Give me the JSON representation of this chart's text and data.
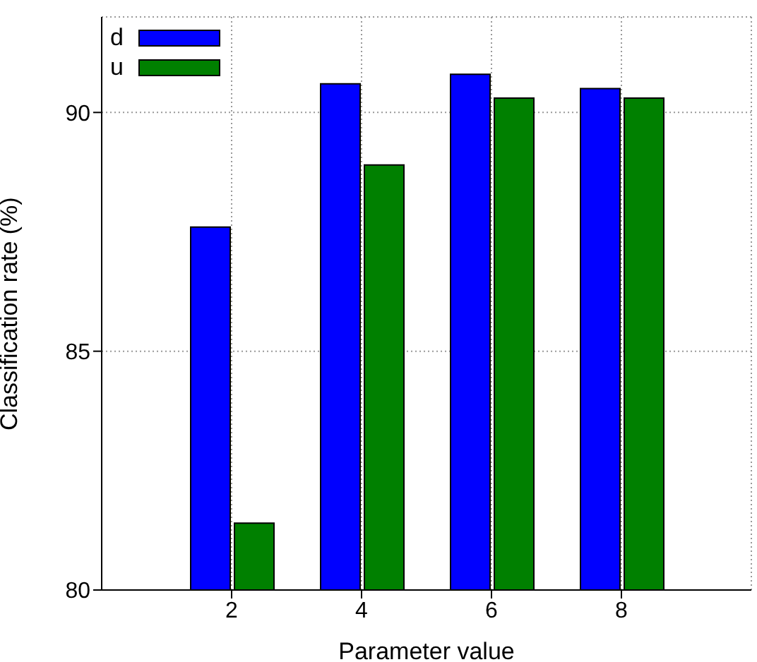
{
  "chart_data": {
    "type": "bar",
    "xlabel": "Parameter value",
    "ylabel": "Classification rate (%)",
    "x": [
      2,
      4,
      6,
      8
    ],
    "series": [
      {
        "name": "d",
        "color": "#0000ff",
        "values": [
          87.6,
          90.6,
          90.8,
          90.5
        ]
      },
      {
        "name": "u",
        "color": "#008000",
        "values": [
          81.4,
          88.9,
          90.3,
          90.3
        ]
      }
    ],
    "xlim": [
      0,
      10
    ],
    "xticks": [
      2,
      4,
      6,
      8
    ],
    "ylim": [
      80,
      92
    ],
    "yticks": [
      80,
      85,
      90
    ],
    "grid": true,
    "legend": "top left"
  }
}
